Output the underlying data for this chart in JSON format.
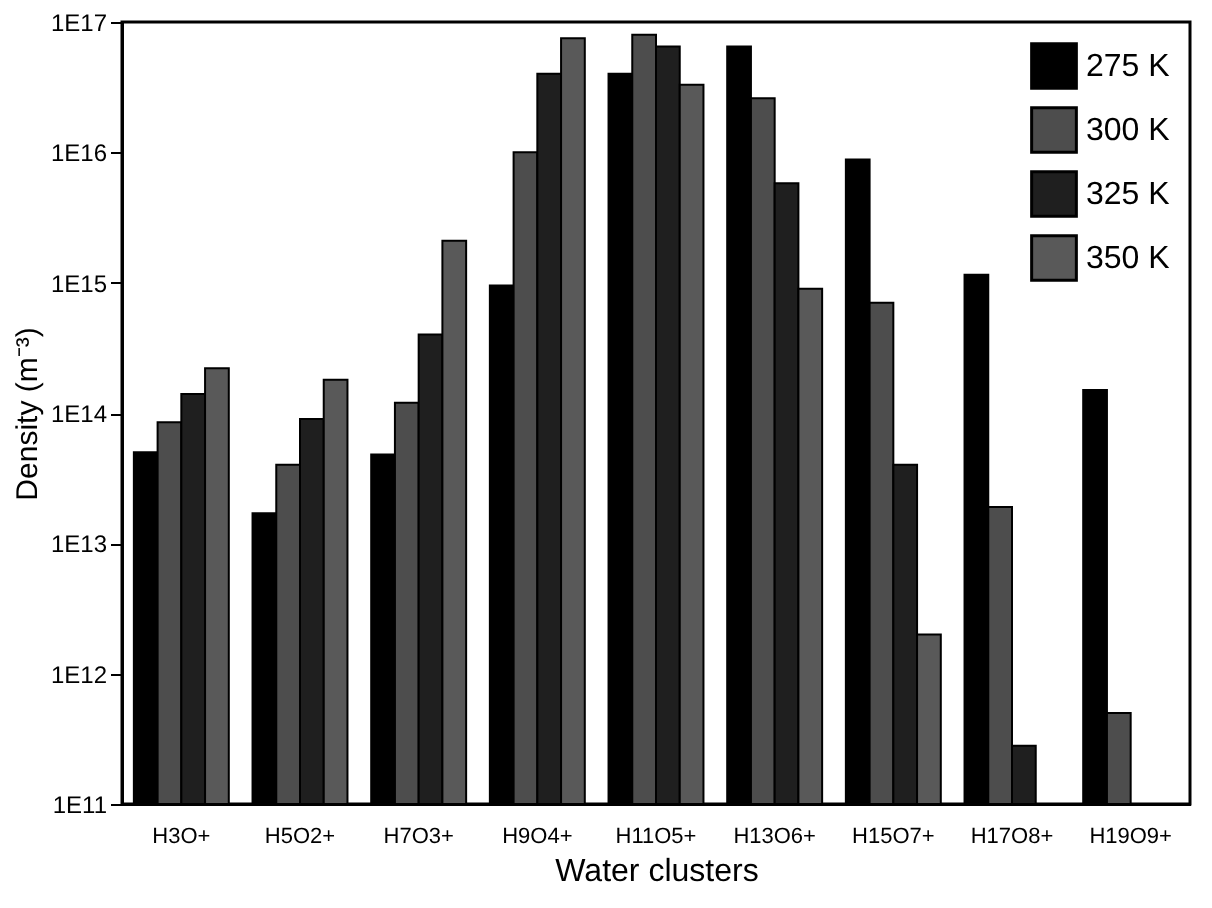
{
  "chart_data": {
    "type": "bar",
    "xlabel": "Water clusters",
    "ylabel": "Density (m⁻³)",
    "categories": [
      "H3O+",
      "H5O2+",
      "H7O3+",
      "H9O4+",
      "H11O5+",
      "H13O6+",
      "H15O7+",
      "H17O8+",
      "H19O9+"
    ],
    "series": [
      {
        "name": "275 K",
        "color": "#000000",
        "values": [
          50000000000000.0,
          17000000000000.0,
          48000000000000.0,
          950000000000000.0,
          4e+16,
          6.5e+16,
          8800000000000000.0,
          1150000000000000.0,
          150000000000000.0
        ]
      },
      {
        "name": "300 K",
        "color": "#4d4d4d",
        "values": [
          85000000000000.0,
          40000000000000.0,
          120000000000000.0,
          1e+16,
          8e+16,
          2.6e+16,
          700000000000000.0,
          19000000000000.0,
          500000000000.0
        ]
      },
      {
        "name": "325 K",
        "color": "#1f1f1f",
        "values": [
          140000000000000.0,
          90000000000000.0,
          400000000000000.0,
          4e+16,
          6.5e+16,
          5800000000000000.0,
          40000000000000.0,
          280000000000.0,
          null
        ]
      },
      {
        "name": "350 K",
        "color": "#595959",
        "values": [
          220000000000000.0,
          180000000000000.0,
          2100000000000000.0,
          7.5e+16,
          3.3e+16,
          900000000000000.0,
          2000000000000.0,
          null,
          null
        ]
      }
    ],
    "log": "y",
    "ylim": [
      100000000000.0,
      1e+17
    ],
    "yticks": [
      {
        "value": 100000000000.0,
        "label": "1E11"
      },
      {
        "value": 1000000000000.0,
        "label": "1E12"
      },
      {
        "value": 10000000000000.0,
        "label": "1E13"
      },
      {
        "value": 100000000000000.0,
        "label": "1E14"
      },
      {
        "value": 1000000000000000.0,
        "label": "1E15"
      },
      {
        "value": 1e+16,
        "label": "1E16"
      },
      {
        "value": 1e+17,
        "label": "1E17"
      }
    ],
    "grid": false,
    "legend": "top right"
  }
}
